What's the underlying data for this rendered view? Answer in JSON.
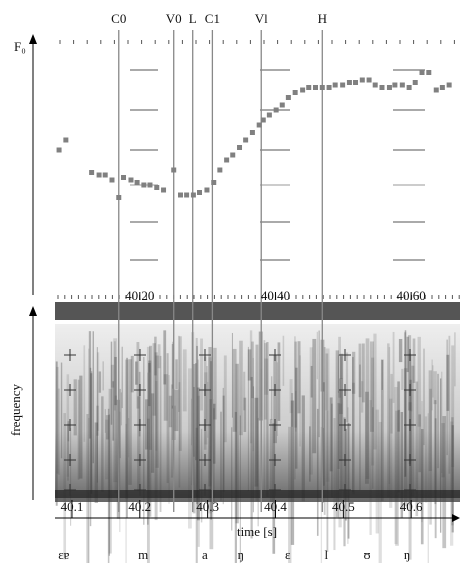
{
  "chart_data": {
    "type": "scatter",
    "y_label": "F₀",
    "x_label": "time [s]",
    "y2_label": "frequency",
    "color": "#808080",
    "xlim": [
      40.075,
      40.672
    ],
    "ylim": [
      0,
      100
    ],
    "x": [
      40.081,
      40.091,
      40.129,
      40.14,
      40.149,
      40.159,
      40.169,
      40.176,
      40.187,
      40.196,
      40.206,
      40.215,
      40.225,
      40.235,
      40.25,
      40.26,
      40.269,
      40.279,
      40.288,
      40.299,
      40.309,
      40.318,
      40.328,
      40.337,
      40.347,
      40.356,
      40.366,
      40.376,
      40.382,
      40.391,
      40.401,
      40.41,
      40.419,
      40.429,
      40.44,
      40.449,
      40.459,
      40.469,
      40.479,
      40.488,
      40.499,
      40.509,
      40.518,
      40.528,
      40.538,
      40.547,
      40.557,
      40.568,
      40.576,
      40.587,
      40.597,
      40.606,
      40.616,
      40.626,
      40.637,
      40.646,
      40.656
    ],
    "values": [
      56,
      60,
      47,
      46,
      46,
      44,
      37,
      45,
      44,
      43,
      42,
      42,
      41,
      40,
      48,
      38,
      38,
      38,
      39,
      40,
      43,
      48,
      52,
      54,
      57,
      60,
      63,
      66,
      68,
      70,
      72,
      74,
      77,
      79,
      80,
      81,
      81,
      81,
      81,
      82,
      82,
      83,
      83,
      84,
      84,
      82,
      81,
      81,
      82,
      82,
      81,
      83,
      87,
      87,
      80,
      81,
      82
    ],
    "xticks": [
      40.1,
      40.2,
      40.3,
      40.4,
      40.5,
      40.6
    ],
    "mid_xticks": [
      {
        "value": 40.2,
        "label": "40.20"
      },
      {
        "value": 40.4,
        "label": "40.40"
      },
      {
        "value": 40.6,
        "label": "40.60"
      }
    ],
    "markers": {
      "labels": [
        "C0",
        "V0",
        "L",
        "C1",
        "Vl",
        "H"
      ],
      "x": [
        40.169,
        40.25,
        40.278,
        40.307,
        40.379,
        40.469
      ]
    },
    "segments": {
      "labels": [
        "εɐ",
        "m",
        "a",
        "ŋ",
        "ɛ",
        "l",
        "ʊ",
        "ŋ"
      ],
      "x": [
        40.088,
        40.205,
        40.296,
        40.349,
        40.418,
        40.475,
        40.535,
        40.594
      ]
    }
  }
}
